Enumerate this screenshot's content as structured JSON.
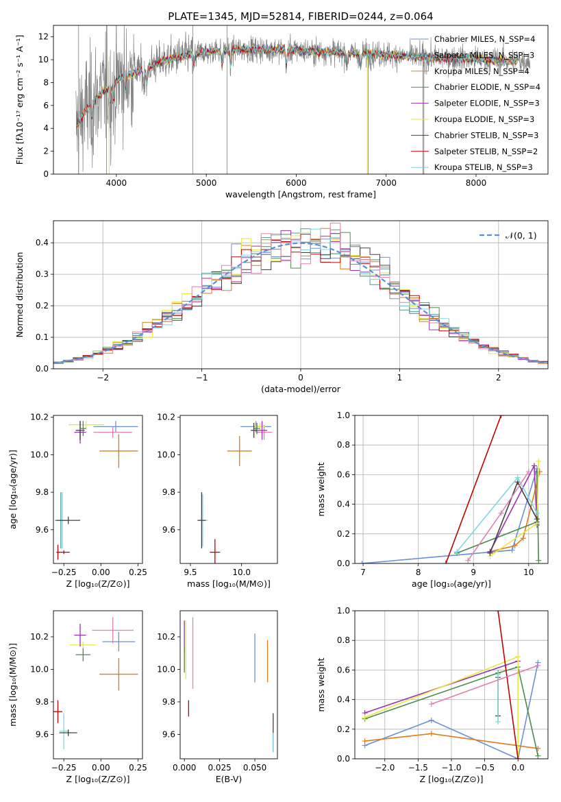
{
  "chart_data": [
    {
      "id": "spectrum",
      "type": "line",
      "title": "PLATE=1345, MJD=52814, FIBERID=0244, z=0.064",
      "xlabel": "wavelength [Angstrom, rest frame]",
      "ylabel": "Flux [fλ10⁻¹⁷ erg cm⁻² s⁻¹ A⁻¹]",
      "xlim": [
        3300,
        8800
      ],
      "ylim": [
        0,
        13
      ],
      "xticks": [
        4000,
        5000,
        6000,
        7000,
        8000
      ],
      "yticks": [
        0,
        2,
        4,
        6,
        8,
        10,
        12
      ],
      "legend_position": "upper-right",
      "series": [
        {
          "name": "Chabrier MILES, N_SSP=4",
          "color": "#6a8fd8"
        },
        {
          "name": "Salpeter MILES, N_SSP=3",
          "color": "#4a9a9a"
        },
        {
          "name": "Kroupa MILES, N_SSP=4",
          "color": "#e07b1a"
        },
        {
          "name": "Chabrier ELODIE, N_SSP=4",
          "color": "#4b8a4b"
        },
        {
          "name": "Salpeter ELODIE, N_SSP=3",
          "color": "#9b30b0"
        },
        {
          "name": "Kroupa ELODIE, N_SSP=3",
          "color": "#e8e840"
        },
        {
          "name": "Chabrier STELIB, N_SSP=3",
          "color": "#404040"
        },
        {
          "name": "Salpeter STELIB, N_SSP=2",
          "color": "#c00000"
        },
        {
          "name": "Kroupa STELIB, N_SSP=3",
          "color": "#7fd8e0"
        }
      ],
      "continuum": {
        "x": [
          3550,
          3650,
          3750,
          3850,
          3950,
          4050,
          4150,
          4300,
          4500,
          4700,
          4900,
          5100,
          5400,
          5700,
          6000,
          6300,
          6600,
          6900,
          7200,
          7500,
          7800,
          8100,
          8400
        ],
        "y": [
          4.0,
          5.5,
          6.5,
          7.2,
          7.8,
          8.4,
          8.7,
          9.2,
          9.8,
          10.3,
          10.6,
          10.8,
          10.9,
          10.9,
          10.8,
          10.7,
          10.6,
          10.5,
          10.3,
          10.2,
          10.1,
          10.0,
          9.9
        ]
      }
    },
    {
      "id": "residuals",
      "type": "histogram",
      "xlabel": "(data-model)/error",
      "ylabel": "Normed distribution",
      "xlim": [
        -2.5,
        2.5
      ],
      "ylim": [
        0,
        0.47
      ],
      "xticks": [
        -2,
        -1,
        0,
        1,
        2
      ],
      "yticks": [
        0.0,
        0.1,
        0.2,
        0.3,
        0.4
      ],
      "grid": true,
      "legend_position": "upper-right",
      "gaussian_label": "𝒩(0, 1)",
      "gaussian_color": "#5b8dd8",
      "bin_width": 0.1
    },
    {
      "id": "age-vs-Z",
      "type": "errorbar",
      "xlabel": "Z [log₁₀(Z/Z⊙)]",
      "ylabel": "age  [log₁₀(age/yr)]",
      "xlim": [
        -0.32,
        0.28
      ],
      "ylim": [
        9.42,
        10.21
      ],
      "xticks": [
        -0.25,
        0.0,
        0.25
      ],
      "yticks": [
        9.6,
        9.8,
        10.0,
        10.2
      ],
      "points": [
        {
          "x": 0.1,
          "y": 10.15,
          "xerr": 0.15,
          "yerr": 0.03,
          "color": "#6a8fd8"
        },
        {
          "x": 0.12,
          "y": 10.02,
          "xerr": 0.13,
          "yerr": 0.09,
          "color": "#e07b1a"
        },
        {
          "x": 0.08,
          "y": 10.12,
          "xerr": 0.13,
          "yerr": 0.03,
          "color": "#e080b0"
        },
        {
          "x": -0.1,
          "y": 10.16,
          "xerr": 0.12,
          "yerr": 0.02,
          "color": "#e8e840"
        },
        {
          "x": -0.14,
          "y": 10.12,
          "xerr": 0.04,
          "yerr": 0.06,
          "color": "#9b30b0"
        },
        {
          "x": -0.14,
          "y": 10.13,
          "xerr": 0.03,
          "yerr": 0.05,
          "color": "#404040"
        },
        {
          "x": -0.12,
          "y": 10.14,
          "xerr": 0.02,
          "yerr": 0.04,
          "color": "#4b8a4b"
        },
        {
          "x": -0.26,
          "y": 9.65,
          "xerr": 0.04,
          "yerr": 0.15,
          "color": "#7fd8e0"
        },
        {
          "x": -0.27,
          "y": 9.65,
          "xerr": 0.04,
          "yerr": 0.15,
          "color": "#4a9a9a"
        },
        {
          "x": -0.22,
          "y": 9.65,
          "xerr": 0.08,
          "yerr": 0.02,
          "color": "#404040"
        },
        {
          "x": -0.29,
          "y": 9.48,
          "xerr": 0.01,
          "yerr": 0.04,
          "color": "#c00000"
        },
        {
          "x": -0.25,
          "y": 9.48,
          "xerr": 0.04,
          "yerr": 0.01,
          "color": "#c00000"
        }
      ]
    },
    {
      "id": "age-vs-mass",
      "type": "errorbar",
      "xlabel": "mass [log₁₀(M/M⊙)]",
      "ylabel": "",
      "xlim": [
        9.4,
        10.35
      ],
      "ylim": [
        9.42,
        10.21
      ],
      "xticks": [
        9.5,
        10.0
      ],
      "yticks": [
        9.6,
        9.8,
        10.0,
        10.2
      ],
      "points": [
        {
          "x": 10.14,
          "y": 10.15,
          "xerr": 0.15,
          "yerr": 0.03,
          "color": "#6a8fd8"
        },
        {
          "x": 9.98,
          "y": 10.02,
          "xerr": 0.12,
          "yerr": 0.08,
          "color": "#e07b1a"
        },
        {
          "x": 10.22,
          "y": 10.12,
          "xerr": 0.08,
          "yerr": 0.04,
          "color": "#e080b0"
        },
        {
          "x": 10.18,
          "y": 10.15,
          "xerr": 0.05,
          "yerr": 0.02,
          "color": "#e8e840"
        },
        {
          "x": 10.2,
          "y": 10.13,
          "xerr": 0.05,
          "yerr": 0.05,
          "color": "#9b30b0"
        },
        {
          "x": 10.15,
          "y": 10.14,
          "xerr": 0.03,
          "yerr": 0.03,
          "color": "#4b8a4b"
        },
        {
          "x": 10.12,
          "y": 10.13,
          "xerr": 0.03,
          "yerr": 0.04,
          "color": "#404040"
        },
        {
          "x": 9.62,
          "y": 9.65,
          "xerr": 0.05,
          "yerr": 0.14,
          "color": "#7fd8e0"
        },
        {
          "x": 9.61,
          "y": 9.65,
          "xerr": 0.04,
          "yerr": 0.15,
          "color": "#404040"
        },
        {
          "x": 9.74,
          "y": 9.48,
          "xerr": 0.05,
          "yerr": 0.07,
          "color": "#c00000"
        }
      ]
    },
    {
      "id": "mass-weight-vs-age",
      "type": "line",
      "xlabel": "age  [log₁₀(age/yr)]",
      "ylabel": "mass weight",
      "xlim": [
        6.85,
        10.35
      ],
      "ylim": [
        0,
        1
      ],
      "xticks": [
        7,
        8,
        9,
        10
      ],
      "yticks": [
        0.0,
        0.2,
        0.4,
        0.6,
        0.8,
        1.0
      ],
      "grid": true,
      "series": [
        {
          "color": "#6a8fd8",
          "points": [
            [
              6.98,
              0.0
            ],
            [
              9.7,
              0.09
            ],
            [
              10.15,
              0.64
            ],
            [
              10.15,
              0.27
            ]
          ]
        },
        {
          "color": "#e07b1a",
          "points": [
            [
              9.3,
              0.08
            ],
            [
              9.75,
              0.12
            ],
            [
              9.9,
              0.17
            ],
            [
              10.2,
              0.62
            ]
          ]
        },
        {
          "color": "#4b8a4b",
          "points": [
            [
              8.7,
              0.07
            ],
            [
              10.15,
              0.28
            ],
            [
              10.15,
              0.62
            ],
            [
              10.18,
              0.02
            ]
          ]
        },
        {
          "color": "#9b30b0",
          "points": [
            [
              9.3,
              0.08
            ],
            [
              10.1,
              0.66
            ],
            [
              10.15,
              0.26
            ]
          ]
        },
        {
          "color": "#e8e840",
          "points": [
            [
              9.3,
              0.05
            ],
            [
              10.15,
              0.27
            ],
            [
              10.18,
              0.69
            ]
          ]
        },
        {
          "color": "#404040",
          "points": [
            [
              9.3,
              0.07
            ],
            [
              9.8,
              0.55
            ],
            [
              10.15,
              0.3
            ]
          ]
        },
        {
          "color": "#c00000",
          "points": [
            [
              8.5,
              0.0
            ],
            [
              9.5,
              1.0
            ]
          ]
        },
        {
          "color": "#7fd8e0",
          "points": [
            [
              8.7,
              0.08
            ],
            [
              9.8,
              0.58
            ],
            [
              10.15,
              0.34
            ]
          ]
        },
        {
          "color": "#e080b0",
          "points": [
            [
              8.9,
              0.02
            ],
            [
              9.5,
              0.34
            ],
            [
              10.0,
              0.62
            ]
          ]
        }
      ]
    },
    {
      "id": "mass-vs-Z",
      "type": "errorbar",
      "xlabel": "Z [log₁₀(Z/Z⊙)]",
      "ylabel": "mass [log₁₀(M/M⊙)]",
      "xlim": [
        -0.32,
        0.28
      ],
      "ylim": [
        9.45,
        10.36
      ],
      "xticks": [
        -0.25,
        0.0,
        0.25
      ],
      "yticks": [
        9.6,
        9.8,
        10.0,
        10.2
      ],
      "points": [
        {
          "x": 0.12,
          "y": 10.17,
          "xerr": 0.11,
          "yerr": 0.06,
          "color": "#6a8fd8"
        },
        {
          "x": 0.12,
          "y": 9.97,
          "xerr": 0.13,
          "yerr": 0.1,
          "color": "#e07b1a"
        },
        {
          "x": 0.08,
          "y": 10.24,
          "xerr": 0.14,
          "yerr": 0.08,
          "color": "#e080b0"
        },
        {
          "x": -0.12,
          "y": 10.15,
          "xerr": 0.09,
          "yerr": 0.02,
          "color": "#e8e840"
        },
        {
          "x": -0.14,
          "y": 10.21,
          "xerr": 0.04,
          "yerr": 0.07,
          "color": "#9b30b0"
        },
        {
          "x": -0.12,
          "y": 10.09,
          "xerr": 0.05,
          "yerr": 0.04,
          "color": "#4b8a4b"
        },
        {
          "x": -0.25,
          "y": 9.62,
          "xerr": 0.03,
          "yerr": 0.11,
          "color": "#7fd8e0"
        },
        {
          "x": -0.22,
          "y": 9.61,
          "xerr": 0.06,
          "yerr": 0.02,
          "color": "#404040"
        },
        {
          "x": -0.29,
          "y": 9.74,
          "xerr": 0.03,
          "yerr": 0.07,
          "color": "#c00000"
        }
      ]
    },
    {
      "id": "mass-vs-EBV",
      "type": "errorbar",
      "xlabel": "E(B-V)",
      "ylabel": "",
      "xlim": [
        -0.003,
        0.066
      ],
      "ylim": [
        9.45,
        10.36
      ],
      "xticks": [
        0.0,
        0.025,
        0.05
      ],
      "xticklabels": [
        "0.000",
        "0.025",
        "0.050"
      ],
      "yticks": [
        9.6,
        9.8,
        10.0,
        10.2
      ],
      "points": [
        {
          "x": 0.001,
          "y": 10.12,
          "yerr": 0.18,
          "color": "#e8e840"
        },
        {
          "x": 0.0,
          "y": 10.2,
          "yerr": 0.1,
          "color": "#9b30b0"
        },
        {
          "x": 0.0,
          "y": 10.06,
          "yerr": 0.08,
          "color": "#4b8a4b"
        },
        {
          "x": 0.006,
          "y": 10.1,
          "yerr": 0.22,
          "color": "#e080b0"
        },
        {
          "x": 0.003,
          "y": 9.76,
          "yerr": 0.05,
          "color": "#c00000"
        },
        {
          "x": 0.05,
          "y": 10.07,
          "yerr": 0.15,
          "color": "#6a8fd8"
        },
        {
          "x": 0.059,
          "y": 10.05,
          "yerr": 0.13,
          "color": "#e07b1a"
        },
        {
          "x": 0.063,
          "y": 9.61,
          "yerr": 0.12,
          "color": "#404040"
        },
        {
          "x": 0.063,
          "y": 9.55,
          "yerr": 0.06,
          "color": "#7fd8e0"
        }
      ]
    },
    {
      "id": "mass-weight-vs-Z",
      "type": "line",
      "xlabel": "Z [log₁₀(Z/Z⊙)]",
      "ylabel": "mass weight",
      "xlim": [
        -2.45,
        0.45
      ],
      "ylim": [
        0,
        1
      ],
      "xticks": [
        -2.0,
        -1.5,
        -1.0,
        -0.5,
        0.0
      ],
      "xticklabels": [
        "−2.0",
        "−1.5",
        "−1.0",
        "−0.5",
        "0.0"
      ],
      "yticks": [
        0.0,
        0.2,
        0.4,
        0.6,
        0.8,
        1.0
      ],
      "grid": true,
      "series": [
        {
          "color": "#6a8fd8",
          "points": [
            [
              -2.3,
              0.09
            ],
            [
              -1.3,
              0.26
            ],
            [
              0.0,
              0.0
            ],
            [
              0.3,
              0.65
            ]
          ]
        },
        {
          "color": "#e07b1a",
          "points": [
            [
              -2.3,
              0.12
            ],
            [
              -1.3,
              0.17
            ],
            [
              0.3,
              0.07
            ]
          ]
        },
        {
          "color": "#4b8a4b",
          "points": [
            [
              -2.3,
              0.27
            ],
            [
              -0.3,
              0.58
            ],
            [
              0.0,
              0.62
            ],
            [
              0.3,
              0.02
            ]
          ]
        },
        {
          "color": "#9b30b0",
          "points": [
            [
              -2.3,
              0.31
            ],
            [
              0.0,
              0.66
            ]
          ]
        },
        {
          "color": "#e8e840",
          "points": [
            [
              -2.3,
              0.28
            ],
            [
              0.0,
              0.69
            ],
            [
              0.0,
              0.0
            ]
          ]
        },
        {
          "color": "#404040",
          "points": [
            [
              -0.3,
              0.55
            ],
            [
              -0.3,
              0.29
            ]
          ]
        },
        {
          "color": "#c00000",
          "points": [
            [
              -0.3,
              1.0
            ],
            [
              0.0,
              0.0
            ]
          ]
        },
        {
          "color": "#7fd8e0",
          "points": [
            [
              -0.3,
              0.57
            ],
            [
              -0.3,
              0.25
            ]
          ]
        },
        {
          "color": "#e080b0",
          "points": [
            [
              -1.3,
              0.37
            ],
            [
              0.3,
              0.63
            ]
          ]
        }
      ]
    }
  ]
}
